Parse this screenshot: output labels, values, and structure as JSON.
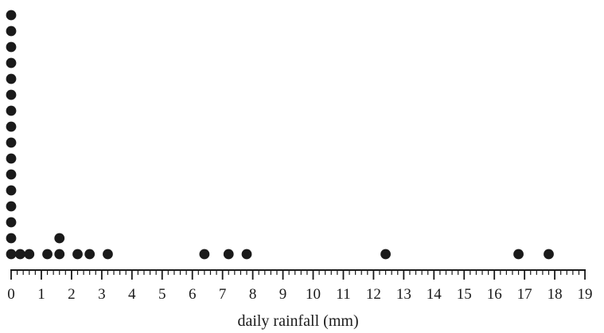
{
  "chart_data": {
    "type": "scatter",
    "subtype": "dot-plot",
    "xlabel": "daily rainfall (mm)",
    "xlim": [
      0,
      19
    ],
    "x_ticks": [
      0,
      1,
      2,
      3,
      4,
      5,
      6,
      7,
      8,
      9,
      10,
      11,
      12,
      13,
      14,
      15,
      16,
      17,
      18,
      19
    ],
    "x_tick_labels": [
      "0",
      "1",
      "2",
      "3",
      "4",
      "5",
      "6",
      "7",
      "8",
      "9",
      "10",
      "11",
      "12",
      "13",
      "14",
      "15",
      "16",
      "17",
      "18",
      "19"
    ],
    "minor_tick_step": 0.2,
    "grid": false,
    "marker_color": "#1a1a1a",
    "axis_color": "#1a1a1a",
    "points": [
      {
        "x": 0,
        "count": 16
      },
      {
        "x": 0.3,
        "count": 1
      },
      {
        "x": 0.6,
        "count": 1
      },
      {
        "x": 1.2,
        "count": 1
      },
      {
        "x": 1.6,
        "count": 2
      },
      {
        "x": 2.2,
        "count": 1
      },
      {
        "x": 2.6,
        "count": 1
      },
      {
        "x": 3.2,
        "count": 1
      },
      {
        "x": 6.4,
        "count": 1
      },
      {
        "x": 7.2,
        "count": 1
      },
      {
        "x": 7.8,
        "count": 1
      },
      {
        "x": 12.4,
        "count": 1
      },
      {
        "x": 16.8,
        "count": 1
      },
      {
        "x": 17.8,
        "count": 1
      }
    ]
  }
}
